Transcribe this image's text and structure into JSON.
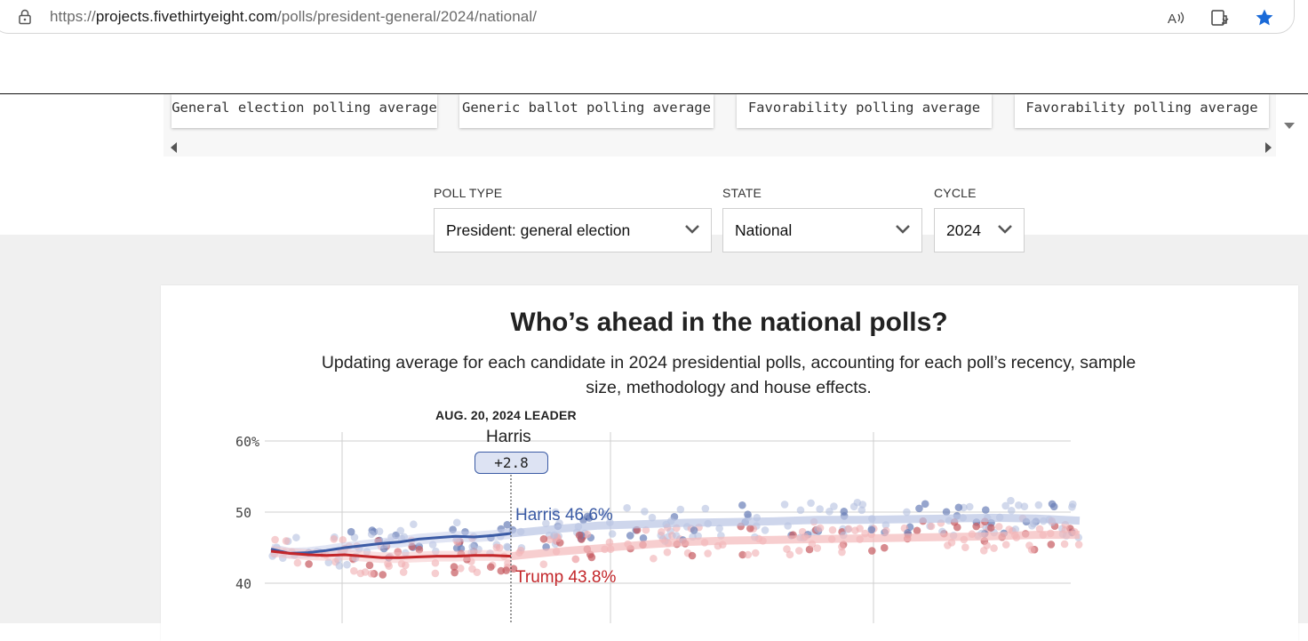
{
  "browser": {
    "url_prefix": "https://",
    "url_host": "projects.fivethirtyeight.com",
    "url_path": "/polls/president-general/2024/national/"
  },
  "carousel": {
    "cards": [
      {
        "label": "General election polling average"
      },
      {
        "label": "Generic ballot polling average"
      },
      {
        "label": "Favorability polling average"
      },
      {
        "label": "Favorability polling average"
      }
    ]
  },
  "selectors": {
    "poll_type": {
      "label": "POLL TYPE",
      "value": "President: general election"
    },
    "state": {
      "label": "STATE",
      "value": "National"
    },
    "cycle": {
      "label": "CYCLE",
      "value": "2024"
    }
  },
  "chart": {
    "title": "Who’s ahead in the national polls?",
    "subtitle": "Updating average for each candidate in 2024 presidential polls, accounting for each poll’s recency, sample size, methodology and house effects.",
    "leader_date": "AUG. 20, 2024 LEADER",
    "leader_name": "Harris",
    "leader_margin": "+2.8",
    "harris_label": "Harris 46.6%",
    "trump_label": "Trump 43.8%"
  },
  "chart_data": {
    "type": "scatter",
    "y_ticks": [
      "60%",
      "50",
      "40"
    ],
    "ylim": [
      38,
      61
    ],
    "grid": true,
    "colors": {
      "harris": "#3b5ba5",
      "trump": "#c3262a"
    },
    "series": [
      {
        "name": "Harris",
        "average": [
          44.8,
          44.2,
          44.3,
          44.6,
          45.0,
          45.3,
          45.6,
          45.8,
          46.2,
          46.4,
          46.6,
          46.5,
          46.7,
          47.0
        ],
        "projection": [
          47.0,
          47.6,
          48.1,
          48.3,
          48.5,
          48.6,
          48.7,
          48.9,
          48.9,
          49.0,
          49.1,
          49.2,
          49.1,
          48.8
        ]
      },
      {
        "name": "Trump",
        "average": [
          44.5,
          44.2,
          44.0,
          43.9,
          44.0,
          43.8,
          43.6,
          43.6,
          43.7,
          43.8,
          43.8,
          43.9,
          43.9,
          43.8
        ],
        "projection": [
          43.8,
          44.4,
          44.9,
          45.4,
          45.8,
          46.0,
          46.1,
          46.2,
          46.3,
          46.4,
          46.5,
          46.6,
          46.8,
          46.8
        ]
      }
    ]
  }
}
